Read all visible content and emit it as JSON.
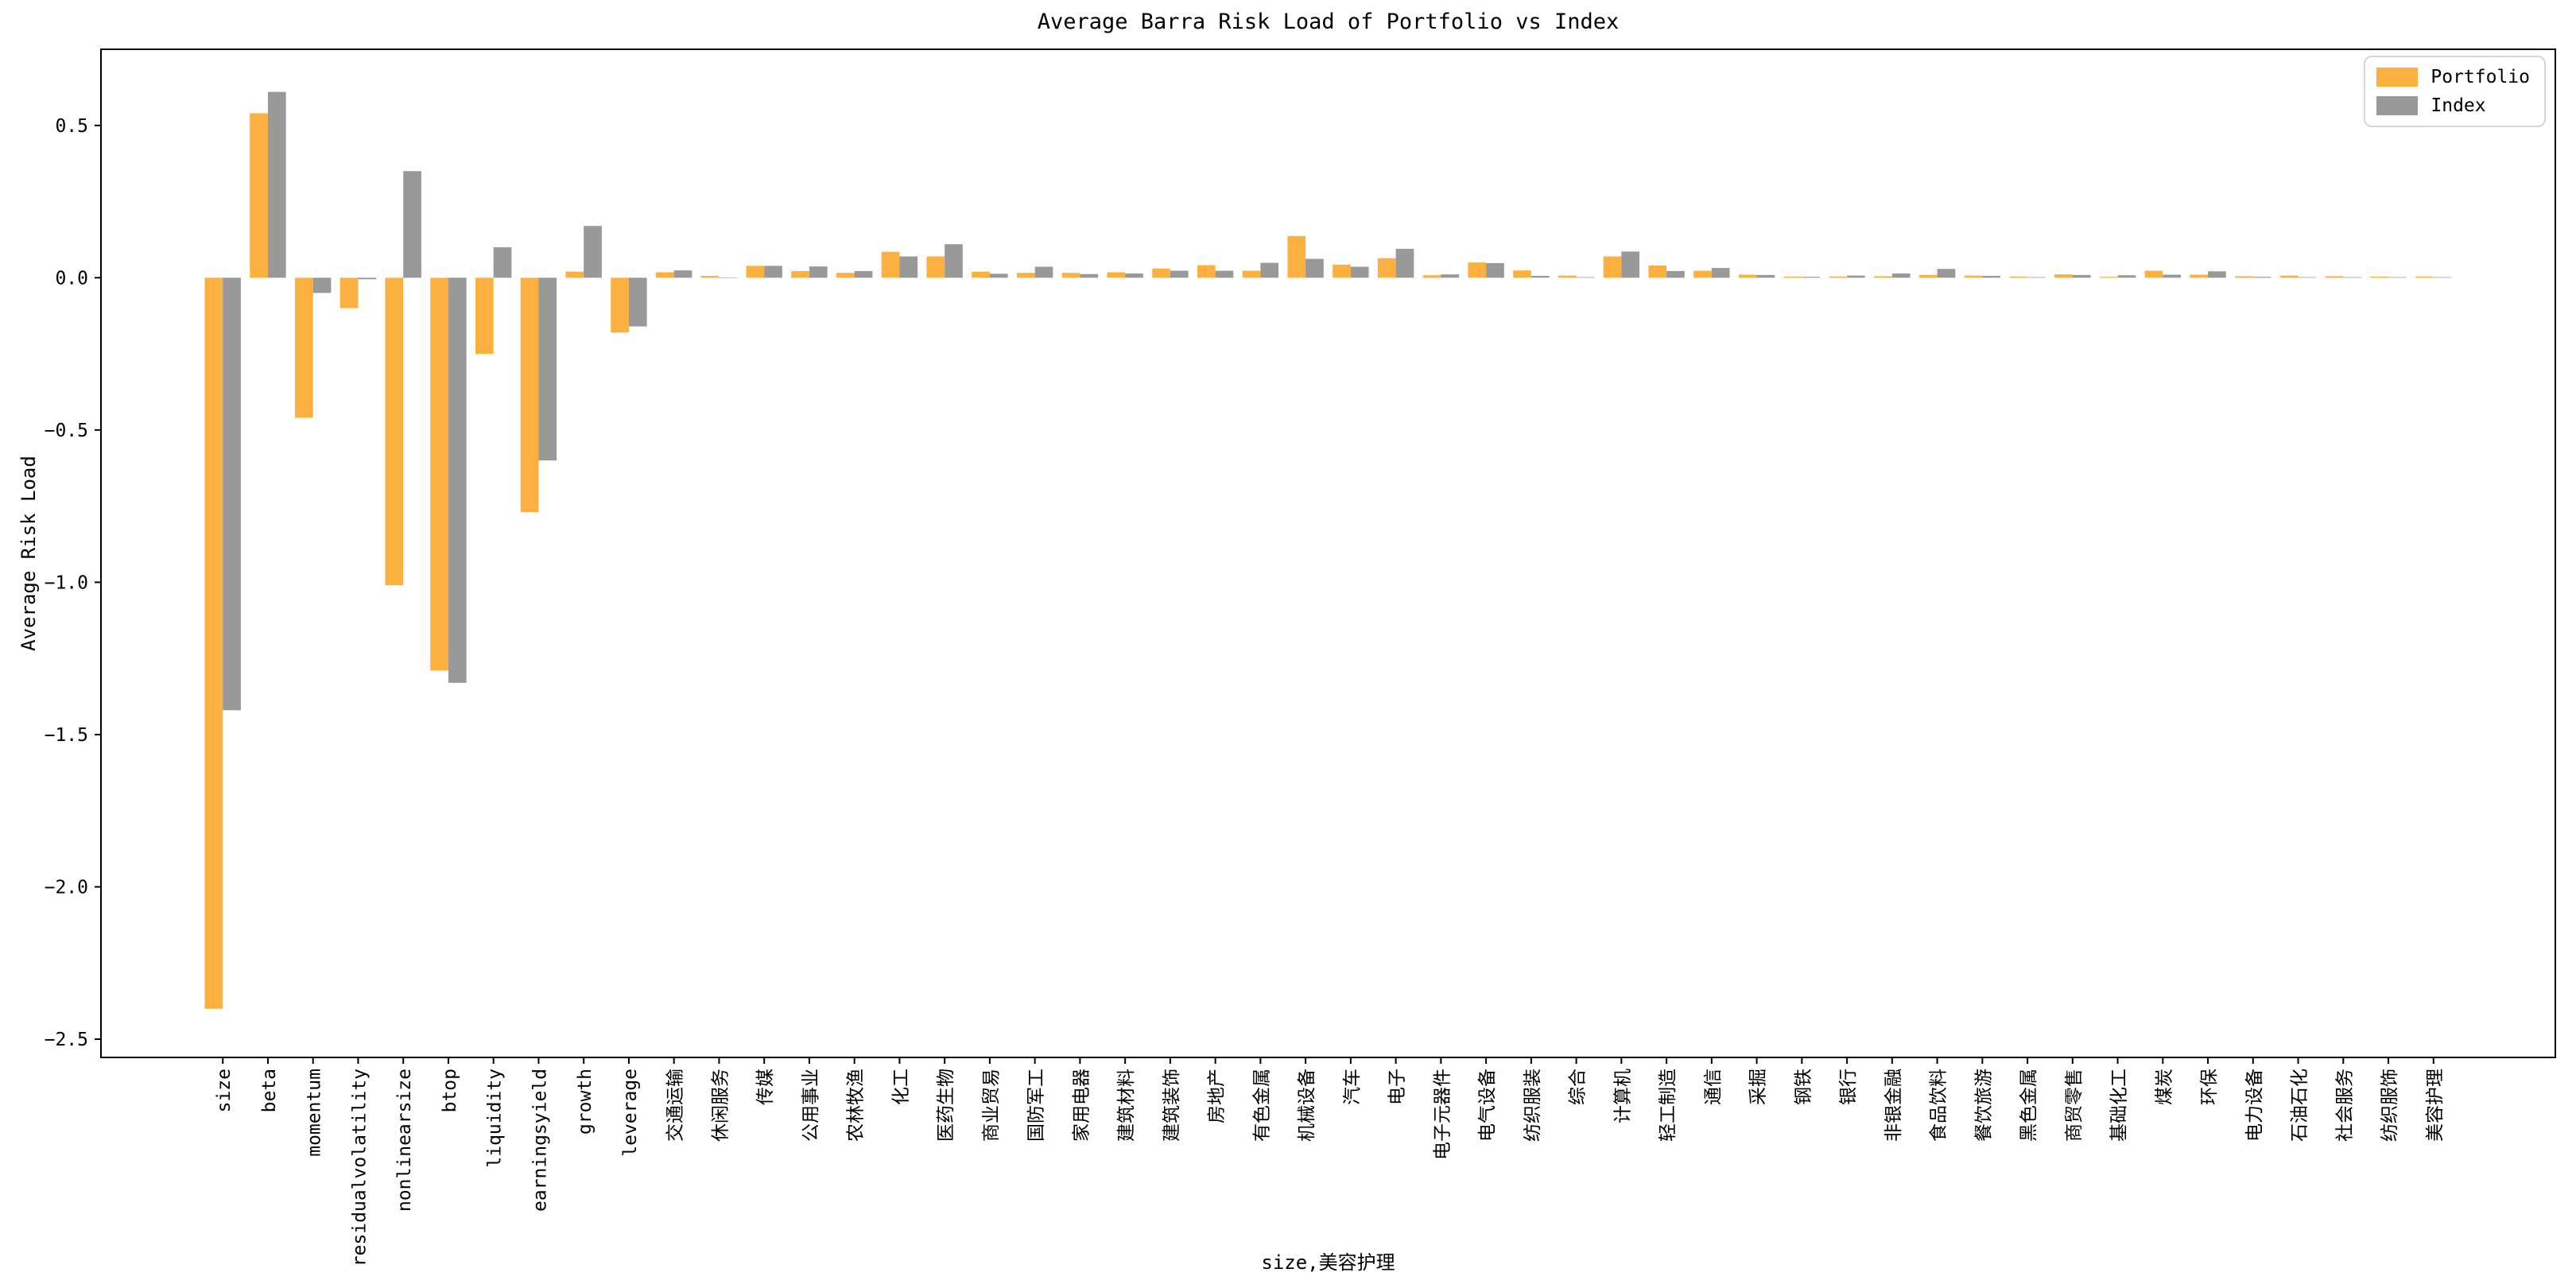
{
  "figure": {
    "background": "#ffffff"
  },
  "legend": {
    "items": [
      {
        "label": "Portfolio",
        "color": "#FBB040"
      },
      {
        "label": "Index",
        "color": "#999999"
      }
    ]
  },
  "chart_data": {
    "type": "bar",
    "title": "Average Barra Risk Load of Portfolio vs Index",
    "xlabel": "size,美容护理",
    "ylabel": "Average Risk Load",
    "ylim": [
      -2.56,
      0.75
    ],
    "yticks": [
      0.5,
      0.0,
      -0.5,
      -1.0,
      -1.5,
      -2.0,
      -2.5
    ],
    "grid": false,
    "legend_position": "upper right",
    "categories": [
      "size",
      "beta",
      "momentum",
      "residualvolatility",
      "nonlinearsize",
      "btop",
      "liquidity",
      "earningsyield",
      "growth",
      "leverage",
      "交通运输",
      "休闲服务",
      "传媒",
      "公用事业",
      "农林牧渔",
      "化工",
      "医药生物",
      "商业贸易",
      "国防军工",
      "家用电器",
      "建筑材料",
      "建筑装饰",
      "房地产",
      "有色金属",
      "机械设备",
      "汽车",
      "电子",
      "电子元器件",
      "电气设备",
      "纺织服装",
      "综合",
      "计算机",
      "轻工制造",
      "通信",
      "采掘",
      "钢铁",
      "银行",
      "非银金融",
      "食品饮料",
      "餐饮旅游",
      "黑色金属",
      "商贸零售",
      "基础化工",
      "煤炭",
      "环保",
      "电力设备",
      "石油石化",
      "社会服务",
      "纺织服饰",
      "美容护理"
    ],
    "series": [
      {
        "name": "Portfolio",
        "color": "#FBB040",
        "values": [
          -2.4,
          0.54,
          -0.46,
          -0.1,
          -1.01,
          -1.29,
          -0.25,
          -0.77,
          0.02,
          -0.18,
          0.018,
          0.006,
          0.039,
          0.022,
          0.016,
          0.085,
          0.07,
          0.02,
          0.016,
          0.016,
          0.018,
          0.03,
          0.041,
          0.023,
          0.137,
          0.043,
          0.064,
          0.008,
          0.05,
          0.024,
          0.007,
          0.07,
          0.04,
          0.023,
          0.01,
          0.004,
          0.004,
          0.005,
          0.009,
          0.007,
          0.004,
          0.011,
          0.003,
          0.023,
          0.01,
          0.005,
          0.007,
          0.005,
          0.004,
          0.004
        ]
      },
      {
        "name": "Index",
        "color": "#999999",
        "values": [
          -1.42,
          0.61,
          -0.05,
          -0.005,
          0.35,
          -1.33,
          0.1,
          -0.6,
          0.17,
          -0.16,
          0.024,
          0.001,
          0.039,
          0.037,
          0.022,
          0.07,
          0.11,
          0.013,
          0.036,
          0.012,
          0.014,
          0.023,
          0.023,
          0.049,
          0.062,
          0.036,
          0.095,
          0.011,
          0.048,
          0.006,
          0.002,
          0.086,
          0.022,
          0.032,
          0.009,
          0.003,
          0.007,
          0.014,
          0.029,
          0.006,
          0.002,
          0.009,
          0.008,
          0.01,
          0.021,
          0.003,
          0.002,
          0.002,
          0.002,
          0.002
        ]
      }
    ]
  }
}
